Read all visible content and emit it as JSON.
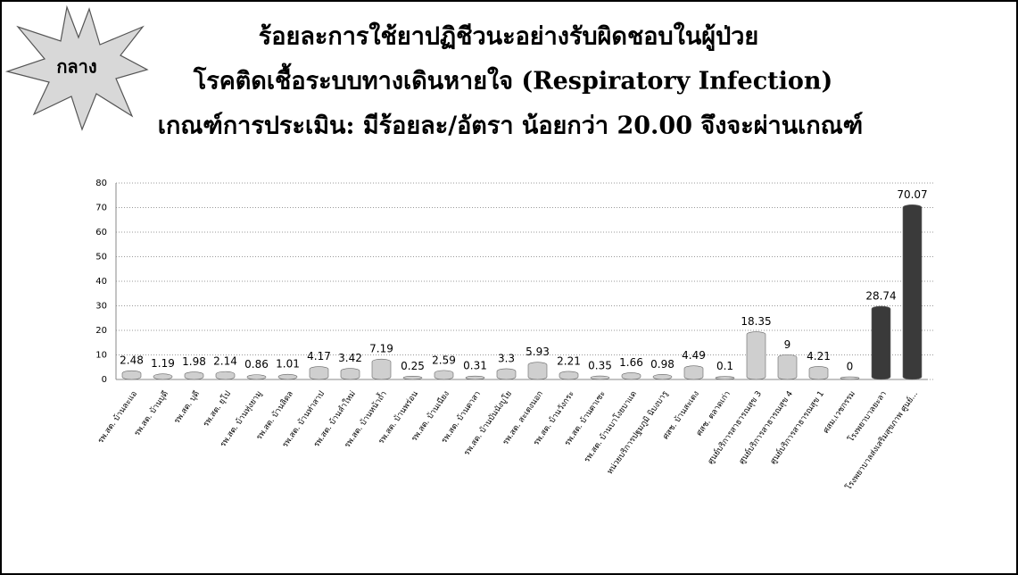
{
  "chart_data": {
    "type": "bar",
    "badge": "กลาง",
    "title": [
      "ร้อยละการใช้ยาปฏิชีวนะอย่างรับผิดชอบในผู้ป่วย",
      "โรคติดเชื้อระบบทางเดินหายใจ (Respiratory Infection)",
      "เกณฑ์การประเมิน: มีร้อยละ/อัตรา น้อยกว่า 20.00 จึงจะผ่านเกณฑ์"
    ],
    "categories": [
      "รพ.สต. บ้านละแอ",
      "รพ.สต. บ้านบุดี",
      "รพ.สต. บุดี",
      "รพ.สต. ยุโป",
      "รพ.สต. บ้านทุ่งยามู",
      "รพ.สต. บ้านลิดล",
      "รพ.สต. บ้านท่าสาป",
      "รพ.สต. บ้านลำใหม่",
      "รพ.สต. บ้านหน้าถ้ำ",
      "รพ.สต. บ้านพร่อน",
      "รพ.สต. บ้านเนียง",
      "รพ.สต. บ้านตาสา",
      "รพ.สต. บ้านบันนังบูโย",
      "รพ.สต. สะเตงนอก",
      "รพ.สต. บ้านวังกระ",
      "รพ.สต. บ้านตาเซะ",
      "รพ.สต. บ้านบาโงยบาแด",
      "หน่วยบริการปฐมภูมิ นิบงบารู",
      "ศสช. บ้านสะเตง",
      "ศสช. ตลาดเก่า",
      "ศูนย์บริการสาธารณสุข 3",
      "ศูนย์บริการสาธารณสุข 4",
      "ศูนย์บริการสาธารณสุข 1",
      "ศสม.เวชกรรม",
      "โรงพยาบาลยะลา",
      "โรงพยาบาลส่งเสริมสุขภาพ ศูนย์..."
    ],
    "values": [
      2.48,
      1.19,
      1.98,
      2.14,
      0.86,
      1.01,
      4.17,
      3.42,
      7.19,
      0.25,
      2.59,
      0.31,
      3.3,
      5.93,
      2.21,
      0.35,
      1.66,
      0.98,
      4.49,
      0.1,
      18.35,
      9,
      4.21,
      0,
      28.74,
      70.07
    ],
    "colors": [
      "#cfcfcf",
      "#cfcfcf",
      "#cfcfcf",
      "#cfcfcf",
      "#cfcfcf",
      "#cfcfcf",
      "#cfcfcf",
      "#cfcfcf",
      "#cfcfcf",
      "#cfcfcf",
      "#cfcfcf",
      "#cfcfcf",
      "#cfcfcf",
      "#cfcfcf",
      "#cfcfcf",
      "#cfcfcf",
      "#cfcfcf",
      "#cfcfcf",
      "#cfcfcf",
      "#cfcfcf",
      "#cfcfcf",
      "#cfcfcf",
      "#cfcfcf",
      "#cfcfcf",
      "#3a3a3a",
      "#3a3a3a"
    ],
    "ylim": [
      0,
      80
    ],
    "yticks": [
      0,
      10,
      20,
      30,
      40,
      50,
      60,
      70,
      80
    ],
    "grid": true
  }
}
